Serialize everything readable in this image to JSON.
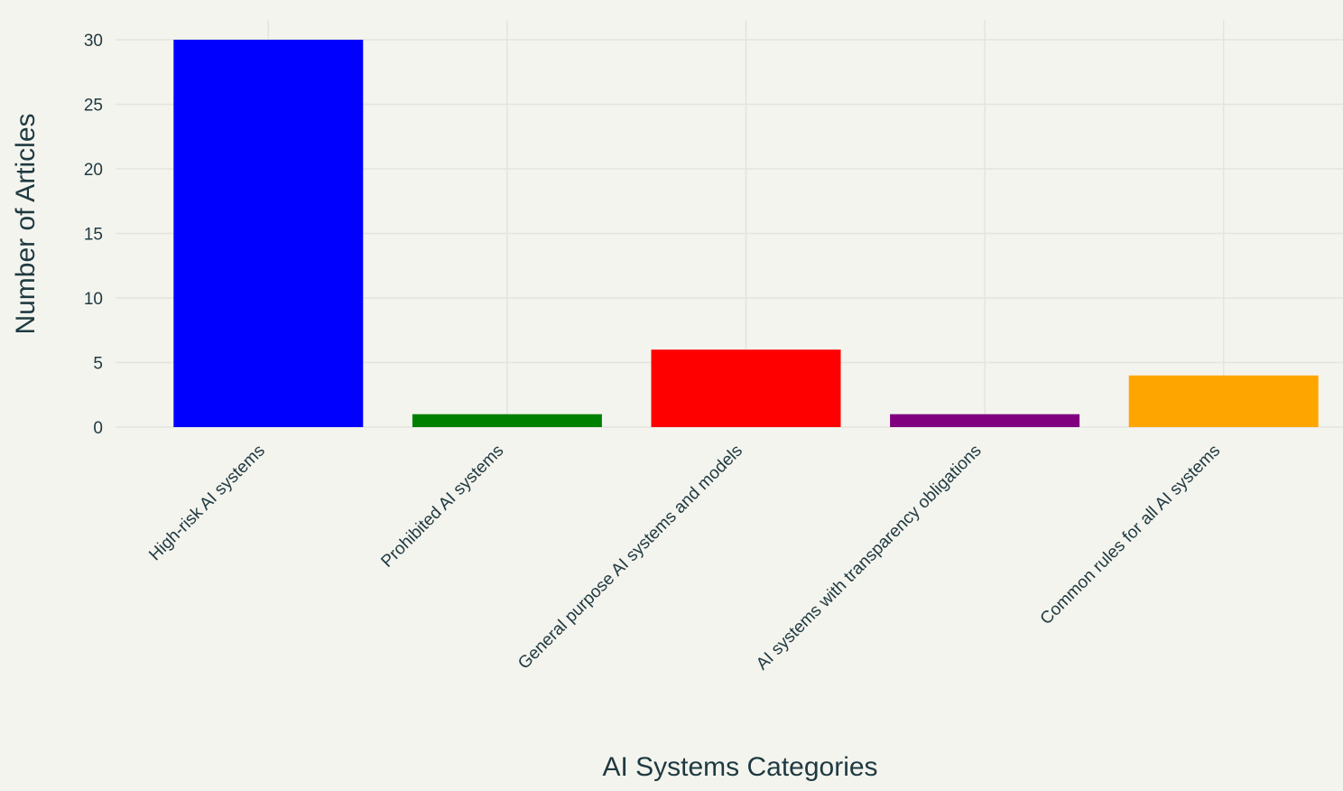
{
  "chart_data": {
    "type": "bar",
    "title": "",
    "xlabel": "AI Systems Categories",
    "ylabel": "Number of Articles",
    "categories": [
      "High-risk AI systems",
      "Prohibited AI systems",
      "General purpose AI systems and models",
      "AI systems with transparency obligations",
      "Common rules for all AI systems"
    ],
    "values": [
      30,
      1,
      6,
      1,
      4
    ],
    "colors": [
      "#0000ff",
      "#008000",
      "#ff0000",
      "#800080",
      "#ffa500"
    ],
    "ylim": [
      0,
      30
    ],
    "yticks": [
      0,
      5,
      10,
      15,
      20,
      25,
      30
    ],
    "grid": true,
    "legend": "none"
  }
}
